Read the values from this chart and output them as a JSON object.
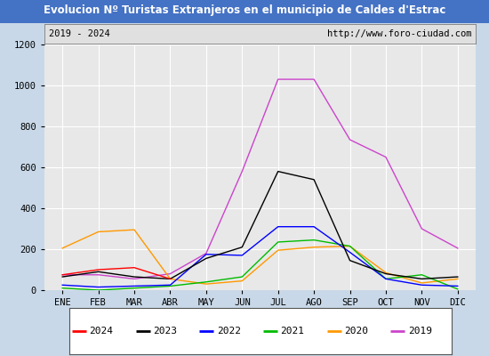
{
  "title": "Evolucion Nº Turistas Extranjeros en el municipio de Caldes d'Estrac",
  "subtitle_left": "2019 - 2024",
  "subtitle_right": "http://www.foro-ciudad.com",
  "months": [
    "ENE",
    "FEB",
    "MAR",
    "ABR",
    "MAY",
    "JUN",
    "JUL",
    "AGO",
    "SEP",
    "OCT",
    "NOV",
    "DIC"
  ],
  "series": {
    "2024": [
      75,
      100,
      110,
      55,
      null,
      null,
      null,
      null,
      null,
      null,
      null,
      null
    ],
    "2023": [
      65,
      90,
      65,
      55,
      155,
      210,
      580,
      540,
      145,
      80,
      55,
      65
    ],
    "2022": [
      25,
      15,
      20,
      25,
      175,
      170,
      310,
      310,
      185,
      55,
      25,
      20
    ],
    "2021": [
      10,
      0,
      10,
      20,
      40,
      65,
      235,
      245,
      215,
      55,
      75,
      5
    ],
    "2020": [
      205,
      285,
      295,
      55,
      30,
      45,
      195,
      210,
      215,
      85,
      35,
      55
    ],
    "2019": [
      75,
      75,
      55,
      80,
      180,
      580,
      1030,
      1030,
      735,
      650,
      300,
      205
    ]
  },
  "colors": {
    "2024": "#ff0000",
    "2023": "#000000",
    "2022": "#0000ff",
    "2021": "#00bb00",
    "2020": "#ff9900",
    "2019": "#cc44cc"
  },
  "ylim": [
    0,
    1200
  ],
  "yticks": [
    0,
    200,
    400,
    600,
    800,
    1000,
    1200
  ],
  "title_bg": "#4472c4",
  "title_color": "#ffffff",
  "plot_bg": "#e8e8e8",
  "outer_bg": "#c8d8e8",
  "grid_color": "#ffffff",
  "subtitle_bg": "#e0e0e0",
  "legend_years_order": [
    "2024",
    "2023",
    "2022",
    "2021",
    "2020",
    "2019"
  ]
}
